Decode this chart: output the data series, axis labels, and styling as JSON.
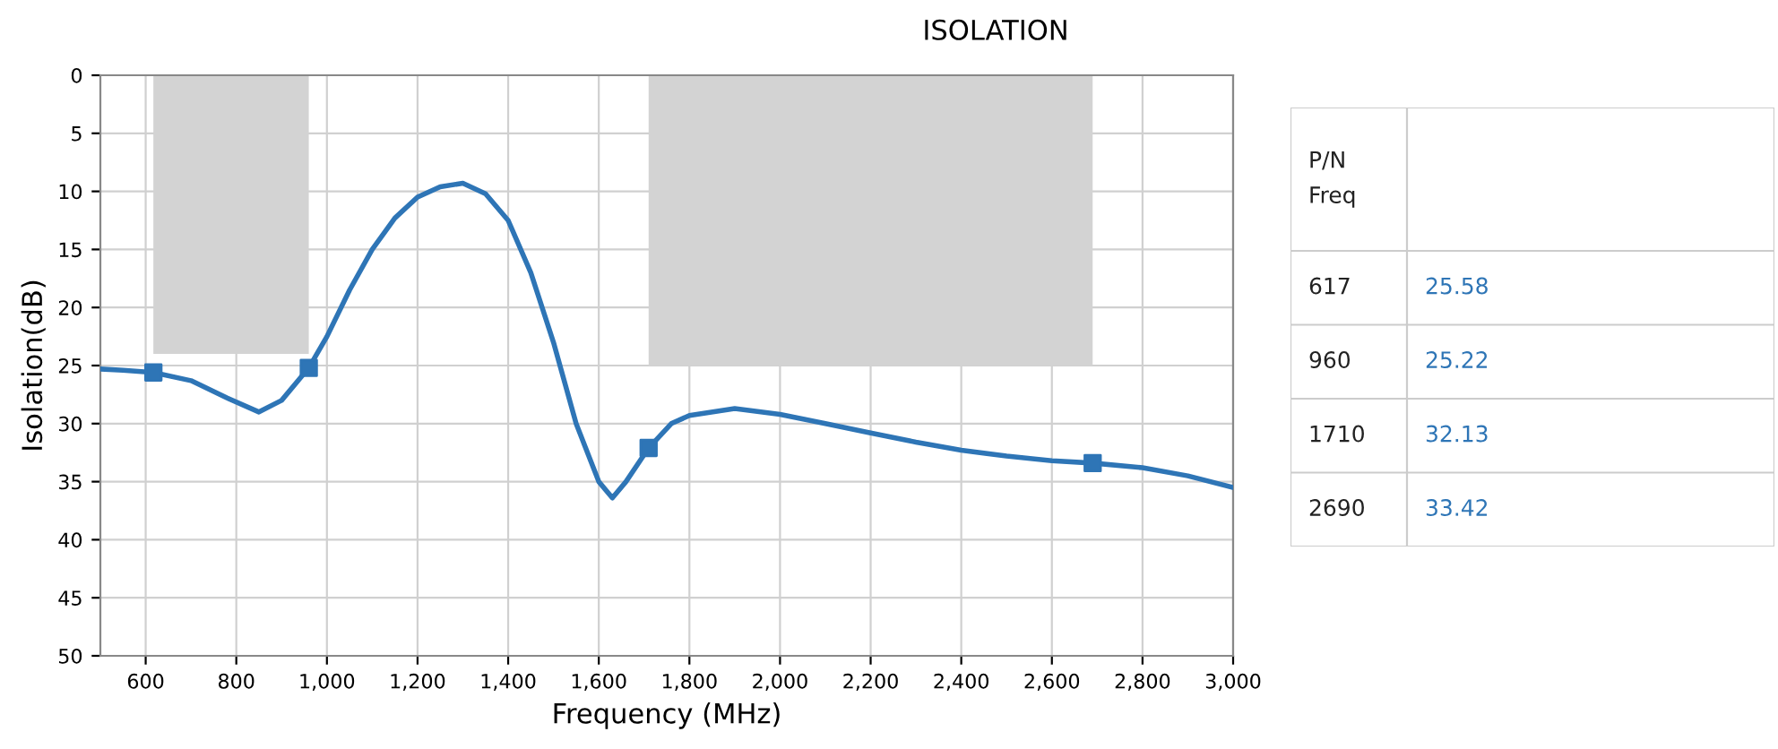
{
  "chart_data": [
    {
      "type": "line",
      "title": "ISOLATION",
      "xlabel": "Frequency (MHz)",
      "ylabel": "Isolation(dB)",
      "xlim": [
        500,
        3000
      ],
      "xticks": [
        {
          "value": 600,
          "label": "600"
        },
        {
          "value": 800,
          "label": "800"
        },
        {
          "value": 1000,
          "label": "1,000"
        },
        {
          "value": 1200,
          "label": "1,200"
        },
        {
          "value": 1400,
          "label": "1,400"
        },
        {
          "value": 1600,
          "label": "1,600"
        },
        {
          "value": 1800,
          "label": "1,800"
        },
        {
          "value": 2000,
          "label": "2,000"
        },
        {
          "value": 2200,
          "label": "2,200"
        },
        {
          "value": 2400,
          "label": "2,400"
        },
        {
          "value": 2600,
          "label": "2,600"
        },
        {
          "value": 2800,
          "label": "2,800"
        },
        {
          "value": 3000,
          "label": "3,000"
        }
      ],
      "ylim": [
        50,
        0
      ],
      "yticks": [
        0,
        5,
        10,
        15,
        20,
        25,
        30,
        35,
        40,
        45,
        50
      ],
      "grid": true,
      "series": [
        {
          "type": "area",
          "color": "#d3d3d3",
          "x": [
            617,
            960
          ],
          "values": [
            24,
            24
          ]
        },
        {
          "type": "area",
          "color": "#d3d3d3",
          "x": [
            1710,
            2690
          ],
          "values": [
            25,
            25
          ]
        },
        {
          "color": "#2e75b6",
          "marker": "none",
          "x": [
            500,
            550,
            617,
            700,
            780,
            850,
            900,
            960,
            1000,
            1050,
            1100,
            1150,
            1200,
            1250,
            1300,
            1350,
            1400,
            1450,
            1500,
            1550,
            1600,
            1630,
            1660,
            1710,
            1760,
            1800,
            1900,
            2000,
            2100,
            2200,
            2300,
            2400,
            2500,
            2600,
            2690,
            2800,
            2900,
            3000
          ],
          "values": [
            25.3,
            25.4,
            25.6,
            26.3,
            27.8,
            29.0,
            28.0,
            25.2,
            22.5,
            18.5,
            15,
            12.3,
            10.5,
            9.6,
            9.3,
            10.2,
            12.5,
            17,
            23,
            30,
            35,
            36.4,
            35,
            32.1,
            30,
            29.3,
            28.7,
            29.2,
            30,
            30.8,
            31.6,
            32.3,
            32.8,
            33.2,
            33.4,
            33.8,
            34.5,
            35.5
          ]
        },
        {
          "type": "scatter",
          "color": "#2e75b6",
          "marker": "square",
          "x": [
            617,
            960,
            1710,
            2690
          ],
          "values": [
            25.6,
            25.2,
            32.1,
            33.4
          ]
        }
      ]
    },
    {
      "type": "other",
      "annotations": [
        "P/N\nFreq",
        null,
        "617",
        "25.58",
        "960",
        "25.22",
        "1710",
        "32.13",
        "2690",
        "33.42"
      ]
    }
  ]
}
